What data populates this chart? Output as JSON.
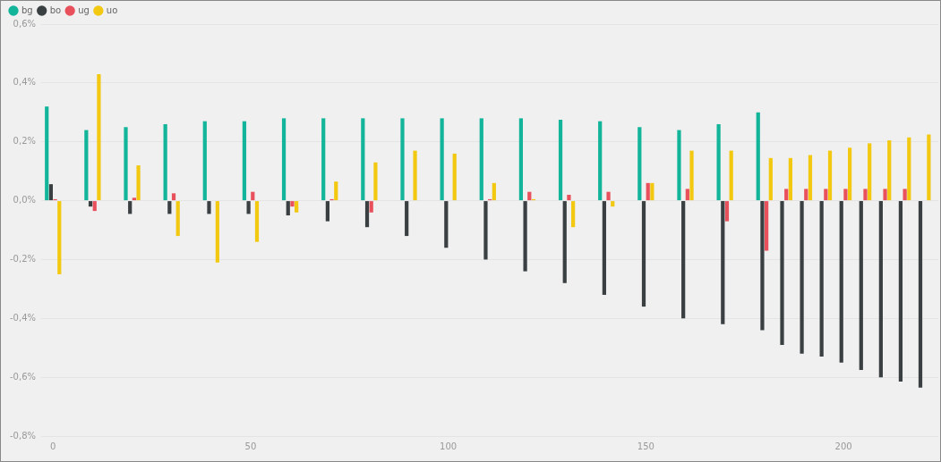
{
  "chart_data": {
    "type": "bar",
    "x": [
      0,
      10,
      20,
      30,
      40,
      50,
      60,
      70,
      80,
      90,
      100,
      110,
      120,
      130,
      140,
      150,
      160,
      170,
      180,
      185,
      190,
      195,
      200,
      205,
      210,
      215,
      220
    ],
    "series": [
      {
        "name": "bg",
        "color": "#12b59a",
        "values": [
          0.32,
          0.24,
          0.25,
          0.26,
          0.27,
          0.27,
          0.28,
          0.28,
          0.28,
          0.28,
          0.28,
          0.28,
          0.28,
          0.275,
          0.27,
          0.25,
          0.24,
          0.26,
          0.3,
          0,
          0,
          0,
          0,
          0,
          0,
          0,
          0
        ]
      },
      {
        "name": "bo",
        "color": "#3a3f42",
        "values": [
          0.056,
          -0.02,
          -0.045,
          -0.045,
          -0.045,
          -0.045,
          -0.05,
          -0.07,
          -0.09,
          -0.12,
          -0.16,
          -0.2,
          -0.24,
          -0.28,
          -0.32,
          -0.36,
          -0.4,
          -0.42,
          -0.44,
          -0.49,
          -0.52,
          -0.53,
          -0.55,
          -0.575,
          -0.6,
          -0.615,
          -0.635
        ]
      },
      {
        "name": "ug",
        "color": "#e8505b",
        "values": [
          0.005,
          -0.035,
          0.01,
          0.025,
          0,
          0.03,
          -0.02,
          0.005,
          -0.04,
          0,
          0,
          0.005,
          0.03,
          0.02,
          0.03,
          0.06,
          0.04,
          -0.07,
          -0.17,
          0.04,
          0.04,
          0.04,
          0.04,
          0.04,
          0.04,
          0.04,
          0
        ]
      },
      {
        "name": "uo",
        "color": "#f2c811",
        "values": [
          -0.25,
          0.43,
          0.12,
          -0.12,
          -0.21,
          -0.14,
          -0.04,
          0.065,
          0.13,
          0.17,
          0.16,
          0.06,
          0.005,
          -0.09,
          -0.02,
          0.06,
          0.17,
          0.17,
          0.145,
          0.145,
          0.155,
          0.17,
          0.18,
          0.195,
          0.205,
          0.215,
          0.225
        ]
      }
    ],
    "xlim": [
      -3,
      224
    ],
    "xticks": [
      0,
      50,
      100,
      150,
      200
    ],
    "ylim": [
      -0.8,
      0.6
    ],
    "yticks": [
      {
        "value": -0.8,
        "label": "-0,8%"
      },
      {
        "value": -0.6,
        "label": "-0,6%"
      },
      {
        "value": -0.4,
        "label": "-0,4%"
      },
      {
        "value": -0.2,
        "label": "-0,2%"
      },
      {
        "value": 0,
        "label": "0,0%"
      },
      {
        "value": 0.2,
        "label": "0,2%"
      },
      {
        "value": 0.4,
        "label": "0,4%"
      },
      {
        "value": 0.6,
        "label": "0,6%"
      }
    ],
    "grid": "y",
    "legend": "top left"
  }
}
